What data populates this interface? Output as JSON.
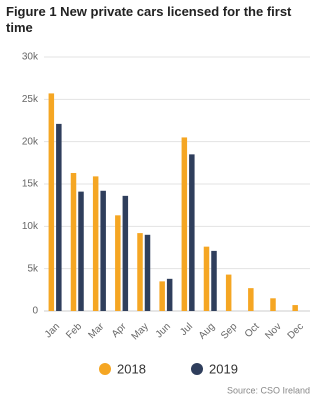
{
  "chart_data": {
    "type": "bar",
    "title": "Figure 1 New private cars licensed for the first time",
    "source": "Source: CSO Ireland",
    "categories": [
      "Jan",
      "Feb",
      "Mar",
      "Apr",
      "May",
      "Jun",
      "Jul",
      "Aug",
      "Sep",
      "Oct",
      "Nov",
      "Dec"
    ],
    "series": [
      {
        "name": "2018",
        "color": "#f5a623",
        "values": [
          25700,
          16300,
          15900,
          11300,
          9200,
          3500,
          20500,
          7600,
          4300,
          2700,
          1500,
          700
        ]
      },
      {
        "name": "2019",
        "color": "#2f3e5c",
        "values": [
          22100,
          14100,
          14200,
          13600,
          9000,
          3800,
          18500,
          7100,
          null,
          null,
          null,
          null
        ]
      }
    ],
    "ylim": [
      0,
      30000
    ],
    "yticks": [
      0,
      {
        "value": 5000,
        "label": "5k"
      },
      {
        "value": 10000,
        "label": "10k"
      },
      {
        "value": 15000,
        "label": "15k"
      },
      {
        "value": 20000,
        "label": "20k"
      },
      {
        "value": 25000,
        "label": "25k"
      },
      {
        "value": 30000,
        "label": "30k"
      }
    ],
    "grid": true
  }
}
